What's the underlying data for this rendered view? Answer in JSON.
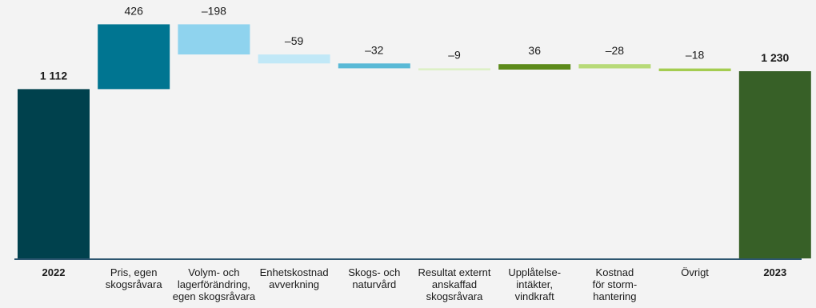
{
  "chart_data": {
    "type": "bar",
    "subtype": "waterfall",
    "title": "",
    "xlabel": "",
    "ylabel": "",
    "ylim": [
      0,
      1230
    ],
    "grid": false,
    "categories": [
      [
        "2022"
      ],
      [
        "Pris, egen",
        "skogsråvara"
      ],
      [
        "Volym- och",
        "lagerförändring,",
        "egen skogsråvara"
      ],
      [
        "Enhetskostnad",
        "avverkning"
      ],
      [
        "Skogs- och",
        "naturvård"
      ],
      [
        "Resultat externt",
        "anskaffad",
        "skogsråvara"
      ],
      [
        "Upplåtelse-",
        "intäkter,",
        "vindkraft"
      ],
      [
        "Kostnad",
        "för storm-",
        "hantering"
      ],
      [
        "Övrigt"
      ],
      [
        "2023"
      ]
    ],
    "values": [
      1112,
      426,
      -198,
      -59,
      -32,
      -9,
      36,
      -28,
      -18,
      1230
    ],
    "value_labels": [
      "1 112",
      "426",
      "–198",
      "–59",
      "–32",
      "–9",
      "36",
      "–28",
      "–18",
      "1 230"
    ],
    "bar_kind": [
      "total",
      "delta",
      "delta",
      "delta",
      "delta",
      "delta",
      "delta",
      "delta",
      "delta",
      "total"
    ],
    "colors": [
      "#00414d",
      "#007591",
      "#8fd3ee",
      "#c1e8f7",
      "#59b9d6",
      "#dcf0c4",
      "#5c8a1a",
      "#b7da78",
      "#a4cc50",
      "#376027"
    ],
    "axis_color": "#2d5670"
  }
}
